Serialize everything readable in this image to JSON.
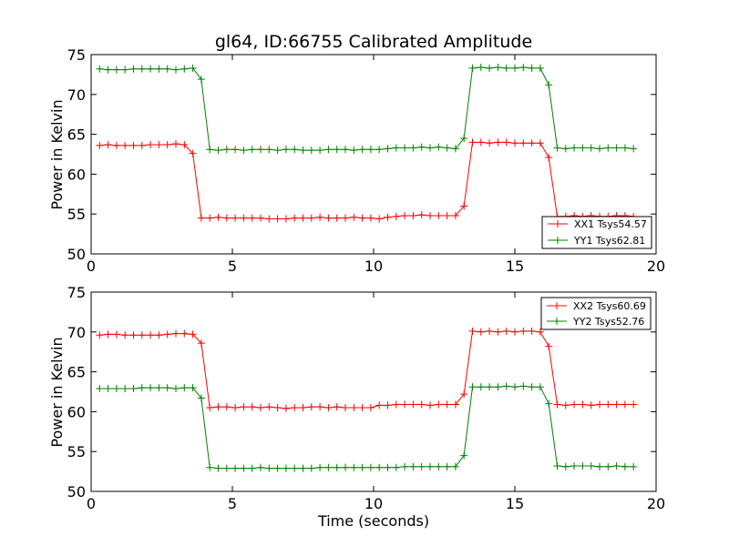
{
  "chart_data": [
    {
      "type": "line",
      "title": "gl64, ID:66755 Calibrated Amplitude",
      "xlabel": "",
      "ylabel": "Power in Kelvin",
      "xlim": [
        0,
        20
      ],
      "ylim": [
        50,
        75
      ],
      "xticks": [
        "0",
        "5",
        "10",
        "15",
        "20"
      ],
      "yticks": [
        "50",
        "55",
        "60",
        "65",
        "70",
        "75"
      ],
      "legend_position": "lower-right",
      "x": [
        0.3,
        0.6,
        0.9,
        1.2,
        1.5,
        1.8,
        2.1,
        2.4,
        2.7,
        3.0,
        3.3,
        3.6,
        3.9,
        4.2,
        4.5,
        4.8,
        5.1,
        5.4,
        5.7,
        6.0,
        6.3,
        6.6,
        6.9,
        7.2,
        7.5,
        7.8,
        8.1,
        8.4,
        8.7,
        9.0,
        9.3,
        9.6,
        9.9,
        10.2,
        10.5,
        10.8,
        11.1,
        11.4,
        11.7,
        12.0,
        12.3,
        12.6,
        12.9,
        13.2,
        13.5,
        13.8,
        14.1,
        14.4,
        14.7,
        15.0,
        15.3,
        15.6,
        15.9,
        16.2,
        16.5,
        16.8,
        17.1,
        17.4,
        17.7,
        18.0,
        18.3,
        18.6,
        18.9,
        19.2
      ],
      "series": [
        {
          "name": "XX1 Tsys54.57",
          "color": "#ff0000",
          "values": [
            63.6,
            63.7,
            63.6,
            63.6,
            63.6,
            63.6,
            63.7,
            63.7,
            63.7,
            63.8,
            63.7,
            62.6,
            54.5,
            54.5,
            54.6,
            54.5,
            54.5,
            54.5,
            54.5,
            54.5,
            54.4,
            54.4,
            54.4,
            54.5,
            54.5,
            54.5,
            54.6,
            54.5,
            54.5,
            54.5,
            54.6,
            54.5,
            54.5,
            54.4,
            54.6,
            54.7,
            54.8,
            54.8,
            54.9,
            54.8,
            54.8,
            54.8,
            54.8,
            56.0,
            64.0,
            64.0,
            63.9,
            64.0,
            64.0,
            63.9,
            63.9,
            63.9,
            63.9,
            62.1,
            54.7,
            54.7,
            54.8,
            54.7,
            54.8,
            54.7,
            54.7,
            54.8,
            54.8,
            54.7
          ]
        },
        {
          "name": "YY1 Tsys62.81",
          "color": "#008000",
          "values": [
            73.2,
            73.1,
            73.1,
            73.1,
            73.2,
            73.2,
            73.2,
            73.2,
            73.2,
            73.1,
            73.2,
            73.3,
            71.9,
            63.1,
            63.0,
            63.1,
            63.1,
            63.0,
            63.1,
            63.1,
            63.1,
            63.0,
            63.1,
            63.1,
            63.0,
            63.0,
            63.0,
            63.1,
            63.1,
            63.1,
            63.0,
            63.1,
            63.1,
            63.1,
            63.2,
            63.3,
            63.3,
            63.3,
            63.4,
            63.3,
            63.4,
            63.3,
            63.2,
            64.5,
            73.3,
            73.4,
            73.3,
            73.4,
            73.3,
            73.3,
            73.4,
            73.3,
            73.3,
            71.2,
            63.3,
            63.2,
            63.3,
            63.3,
            63.3,
            63.2,
            63.3,
            63.3,
            63.3,
            63.2
          ]
        }
      ]
    },
    {
      "type": "line",
      "title": "",
      "xlabel": "Time (seconds)",
      "ylabel": "Power in Kelvin",
      "xlim": [
        0,
        20
      ],
      "ylim": [
        50,
        75
      ],
      "xticks": [
        "0",
        "5",
        "10",
        "15",
        "20"
      ],
      "yticks": [
        "50",
        "55",
        "60",
        "65",
        "70",
        "75"
      ],
      "legend_position": "upper-right",
      "x": [
        0.3,
        0.6,
        0.9,
        1.2,
        1.5,
        1.8,
        2.1,
        2.4,
        2.7,
        3.0,
        3.3,
        3.6,
        3.9,
        4.2,
        4.5,
        4.8,
        5.1,
        5.4,
        5.7,
        6.0,
        6.3,
        6.6,
        6.9,
        7.2,
        7.5,
        7.8,
        8.1,
        8.4,
        8.7,
        9.0,
        9.3,
        9.6,
        9.9,
        10.2,
        10.5,
        10.8,
        11.1,
        11.4,
        11.7,
        12.0,
        12.3,
        12.6,
        12.9,
        13.2,
        13.5,
        13.8,
        14.1,
        14.4,
        14.7,
        15.0,
        15.3,
        15.6,
        15.9,
        16.2,
        16.5,
        16.8,
        17.1,
        17.4,
        17.7,
        18.0,
        18.3,
        18.6,
        18.9,
        19.2
      ],
      "series": [
        {
          "name": "XX2 Tsys60.69",
          "color": "#ff0000",
          "values": [
            69.6,
            69.7,
            69.7,
            69.6,
            69.6,
            69.6,
            69.6,
            69.6,
            69.7,
            69.8,
            69.8,
            69.7,
            68.6,
            60.5,
            60.6,
            60.6,
            60.5,
            60.6,
            60.6,
            60.5,
            60.6,
            60.5,
            60.4,
            60.5,
            60.5,
            60.6,
            60.6,
            60.5,
            60.6,
            60.5,
            60.5,
            60.5,
            60.5,
            60.8,
            60.8,
            60.9,
            60.9,
            60.9,
            60.9,
            60.8,
            60.9,
            60.9,
            60.9,
            62.2,
            70.1,
            70.0,
            70.1,
            70.0,
            70.1,
            70.0,
            70.1,
            70.1,
            70.0,
            68.2,
            60.9,
            60.8,
            60.9,
            60.9,
            60.8,
            60.9,
            60.9,
            60.9,
            60.9,
            60.9
          ]
        },
        {
          "name": "YY2 Tsys52.76",
          "color": "#008000",
          "values": [
            62.9,
            62.9,
            62.9,
            62.9,
            62.9,
            63.0,
            63.0,
            63.0,
            63.0,
            62.9,
            63.0,
            63.0,
            61.7,
            53.0,
            52.9,
            52.9,
            52.9,
            52.9,
            52.9,
            53.0,
            52.9,
            52.9,
            52.9,
            52.9,
            52.9,
            52.9,
            53.0,
            53.0,
            53.0,
            53.0,
            53.0,
            53.0,
            53.0,
            53.0,
            53.0,
            53.0,
            53.1,
            53.1,
            53.1,
            53.1,
            53.1,
            53.1,
            53.1,
            54.5,
            63.1,
            63.1,
            63.1,
            63.1,
            63.2,
            63.1,
            63.2,
            63.1,
            63.1,
            61.0,
            53.2,
            53.1,
            53.2,
            53.2,
            53.2,
            53.1,
            53.1,
            53.2,
            53.1,
            53.1
          ]
        }
      ]
    }
  ]
}
